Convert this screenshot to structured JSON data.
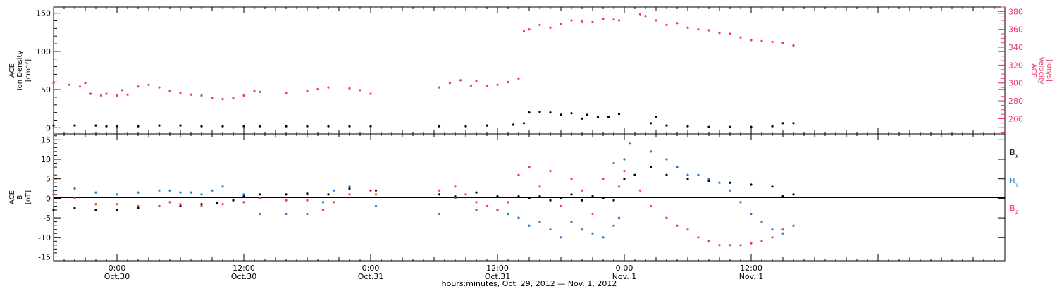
{
  "colors": {
    "density": "#000000",
    "velocity": "#e83a64",
    "bx": "#000000",
    "by": "#1a7ad8",
    "bz": "#e83a64"
  },
  "x_axis": {
    "hours_min": -6,
    "hours_max": 84,
    "caption": "hours:minutes, Oct. 29, 2012 — Nov.  1, 2012",
    "ticks": [
      {
        "h": 0,
        "time": "0:00",
        "date": "Oct.30"
      },
      {
        "h": 12,
        "time": "12:00",
        "date": "Oct.30"
      },
      {
        "h": 24,
        "time": "0:00",
        "date": "Oct.31"
      },
      {
        "h": 36,
        "time": "12:00",
        "date": "Oct.31"
      },
      {
        "h": 48,
        "time": "0:00",
        "date": "Nov. 1"
      },
      {
        "h": 60,
        "time": "12:00",
        "date": "Nov. 1"
      }
    ]
  },
  "chart_data": [
    {
      "type": "scatter",
      "title": "",
      "left_axis": {
        "label_lines": [
          "ACE",
          "Ion Density",
          "[cm⁻³]"
        ],
        "ylim": [
          -8,
          158
        ],
        "ticks": [
          "0",
          "50",
          "100",
          "150"
        ]
      },
      "right_axis": {
        "label_lines": [
          "ACE",
          "Velocity",
          "[km/s]"
        ],
        "ylim": [
          243,
          385
        ],
        "ticks": [
          "260",
          "280",
          "300",
          "320",
          "340",
          "360",
          "380"
        ]
      },
      "series": [
        {
          "key": "density",
          "axis": "left",
          "x": [
            -6,
            -4,
            -2,
            -1,
            0,
            2,
            4,
            6,
            8,
            10,
            12,
            13.5,
            16,
            18,
            20,
            22,
            24,
            30.5,
            33,
            35,
            37.5,
            38.5,
            39,
            40,
            41,
            42,
            43,
            44,
            44.5,
            45.5,
            46.5,
            47.5,
            50.5,
            51,
            52,
            54,
            56,
            58,
            60,
            62,
            63,
            64
          ],
          "y": [
            3,
            3,
            3,
            2,
            2,
            2,
            3,
            3,
            2,
            2,
            2,
            2,
            2,
            2,
            2,
            2,
            2,
            2,
            2,
            3,
            4,
            6,
            20,
            21,
            20,
            17,
            19,
            12,
            17,
            14,
            14,
            18,
            6,
            14,
            3,
            2,
            1,
            1,
            1,
            2,
            6,
            6
          ]
        },
        {
          "key": "velocity",
          "axis": "right",
          "x": [
            -6,
            -4.5,
            -3.5,
            -3,
            -2.5,
            -1.5,
            -1,
            0,
            0.5,
            1,
            2,
            3,
            4,
            5,
            6,
            7,
            8,
            9,
            10,
            11,
            12,
            13,
            13.5,
            16,
            18,
            19,
            20,
            22,
            23,
            24,
            30.5,
            31.5,
            32.5,
            33.5,
            34,
            35,
            36,
            37,
            38,
            38.5,
            39,
            40,
            41,
            42,
            43,
            44,
            45,
            46,
            47,
            47.5,
            49.5,
            50,
            51,
            52,
            53,
            54,
            55,
            56,
            57,
            58,
            59,
            60,
            61,
            62,
            63,
            64
          ],
          "y": [
            300,
            298,
            296,
            300,
            288,
            286,
            288,
            286,
            292,
            287,
            296,
            298,
            295,
            291,
            289,
            287,
            286,
            283,
            282,
            283,
            286,
            291,
            290,
            289,
            291,
            293,
            295,
            294,
            292,
            288,
            295,
            300,
            303,
            297,
            302,
            297,
            298,
            301,
            305,
            358,
            360,
            365,
            362,
            366,
            370,
            369,
            368,
            372,
            371,
            370,
            377,
            375,
            370,
            365,
            367,
            362,
            360,
            359,
            356,
            355,
            351,
            348,
            347,
            346,
            345,
            342
          ]
        }
      ]
    },
    {
      "type": "scatter",
      "title": "",
      "left_axis": {
        "label_lines": [
          "ACE",
          "B",
          "[nT]"
        ],
        "ylim": [
          -16,
          16.5
        ],
        "ticks": [
          "-15",
          "-10",
          "-5",
          "0",
          "5",
          "10",
          "15"
        ]
      },
      "legend": [
        "B",
        "B",
        "B"
      ],
      "legend_subs": [
        "x",
        "y",
        "z"
      ],
      "series": [
        {
          "key": "bx",
          "name": "Bx",
          "x": [
            -6,
            -4,
            -2,
            0,
            2,
            4,
            6,
            8,
            9.5,
            11,
            12,
            13.5,
            16,
            18,
            20,
            22,
            24,
            24.5,
            30.5,
            32,
            34,
            36,
            38,
            39,
            40,
            41,
            42,
            43,
            44,
            45,
            46,
            47,
            48,
            49,
            50.5,
            52,
            54,
            56,
            58,
            60,
            62,
            63,
            64
          ],
          "y": [
            -3,
            -2.5,
            -3,
            -3,
            -2.5,
            -2,
            -2,
            -1.5,
            -1.2,
            -0.5,
            0.5,
            1,
            1,
            1.2,
            1,
            2.5,
            2,
            2,
            1,
            0.5,
            1.5,
            0.5,
            0.5,
            0,
            0.5,
            -0.5,
            0,
            1,
            -0.5,
            0.5,
            0,
            -0.5,
            5,
            6,
            8,
            6,
            5,
            4.5,
            4,
            3.5,
            3,
            0.5,
            1
          ]
        },
        {
          "key": "by",
          "name": "By",
          "x": [
            -6,
            -4,
            -2,
            0,
            2,
            4,
            5,
            6,
            7,
            8,
            9,
            10,
            12,
            13.5,
            16,
            18,
            19.5,
            20.5,
            22,
            24,
            24.5,
            30.5,
            32,
            34,
            36,
            37,
            38,
            39,
            40,
            41,
            42,
            43,
            44,
            45,
            46,
            47,
            47.5,
            48,
            48.5,
            50.5,
            52,
            53,
            54,
            55,
            56,
            57,
            58,
            59,
            60,
            61,
            62,
            63,
            64
          ],
          "y": [
            2,
            2.5,
            1.5,
            1,
            1.5,
            2,
            2,
            1.5,
            1.5,
            1,
            2,
            3,
            1,
            -4,
            -4,
            -4,
            -1,
            2,
            3,
            2,
            -2,
            -4,
            0,
            -3,
            -3,
            -4,
            -5,
            -7,
            -6,
            -8,
            -10,
            -6,
            -8,
            -9,
            -10,
            -7,
            -5,
            10,
            14,
            12,
            10,
            8,
            6,
            6,
            5,
            4,
            2,
            -1,
            -4,
            -6,
            -8,
            -9,
            -7
          ]
        },
        {
          "key": "bz",
          "name": "Bz",
          "x": [
            -6,
            -4,
            -2,
            0,
            2,
            4,
            5,
            6,
            8,
            10,
            12,
            13.5,
            16,
            18,
            19.5,
            20.5,
            22,
            24,
            24.5,
            30.5,
            32,
            33,
            34,
            35,
            36,
            37,
            38,
            39,
            40,
            41,
            42,
            43,
            44,
            45,
            46,
            47,
            47.5,
            48,
            49.5,
            50.5,
            52,
            53,
            54,
            55,
            56,
            57,
            58,
            59,
            60,
            61,
            62,
            63,
            64
          ],
          "y": [
            1,
            0,
            -1.5,
            -1.5,
            -2,
            -2,
            -1,
            -1.5,
            -2,
            -1.5,
            -1,
            0,
            -0.5,
            -0.5,
            -3,
            -1,
            1,
            2,
            1,
            2,
            3,
            1,
            -1,
            -2,
            -3,
            -1,
            6,
            8,
            3,
            7,
            -2,
            5,
            2,
            -4,
            5,
            9,
            3,
            7,
            2,
            -2,
            -5,
            -7,
            -8,
            -10,
            -11,
            -12,
            -12,
            -12,
            -11.5,
            -11,
            -10,
            -8,
            -7
          ]
        }
      ]
    }
  ]
}
